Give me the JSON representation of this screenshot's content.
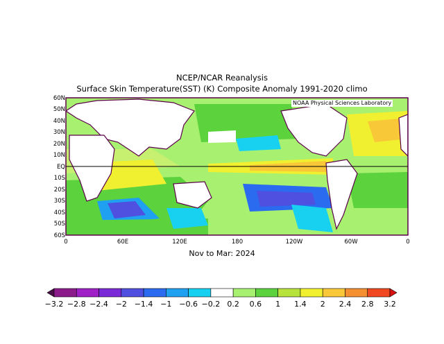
{
  "title_line1": "NCEP/NCAR Reanalysis",
  "title_line2": "Surface Skin Temperature(SST) (K) Composite Anomaly 1991-2020 climo",
  "credit": "NOAA Physical Sciences Laboratory",
  "period": "Nov to Mar: 2024",
  "lat_labels": [
    "60N",
    "50N",
    "40N",
    "30N",
    "20N",
    "10N",
    "EQ",
    "10S",
    "20S",
    "30S",
    "40S",
    "50S",
    "60S"
  ],
  "lon_labels": [
    "0",
    "60E",
    "120E",
    "180",
    "120W",
    "60W",
    "0"
  ],
  "colorbar": {
    "labels": [
      "−3.2",
      "−2.8",
      "−2.4",
      "−2",
      "−1.4",
      "−1",
      "−0.6",
      "−0.2",
      "0.2",
      "0.6",
      "1",
      "1.4",
      "2",
      "2.4",
      "2.8",
      "3.2"
    ],
    "colors": [
      "#4b0f4a",
      "#8b1a8b",
      "#a020c8",
      "#7b2ad8",
      "#4f4fe0",
      "#2a6bf0",
      "#1fa0f0",
      "#18d0f0",
      "#ffffff",
      "#a8f070",
      "#5cd23c",
      "#b8e23c",
      "#f0f030",
      "#f8c838",
      "#f49030",
      "#f04820",
      "#d81010"
    ]
  },
  "colors": {
    "land_outline": "#5a004a",
    "equator": "#000000"
  }
}
